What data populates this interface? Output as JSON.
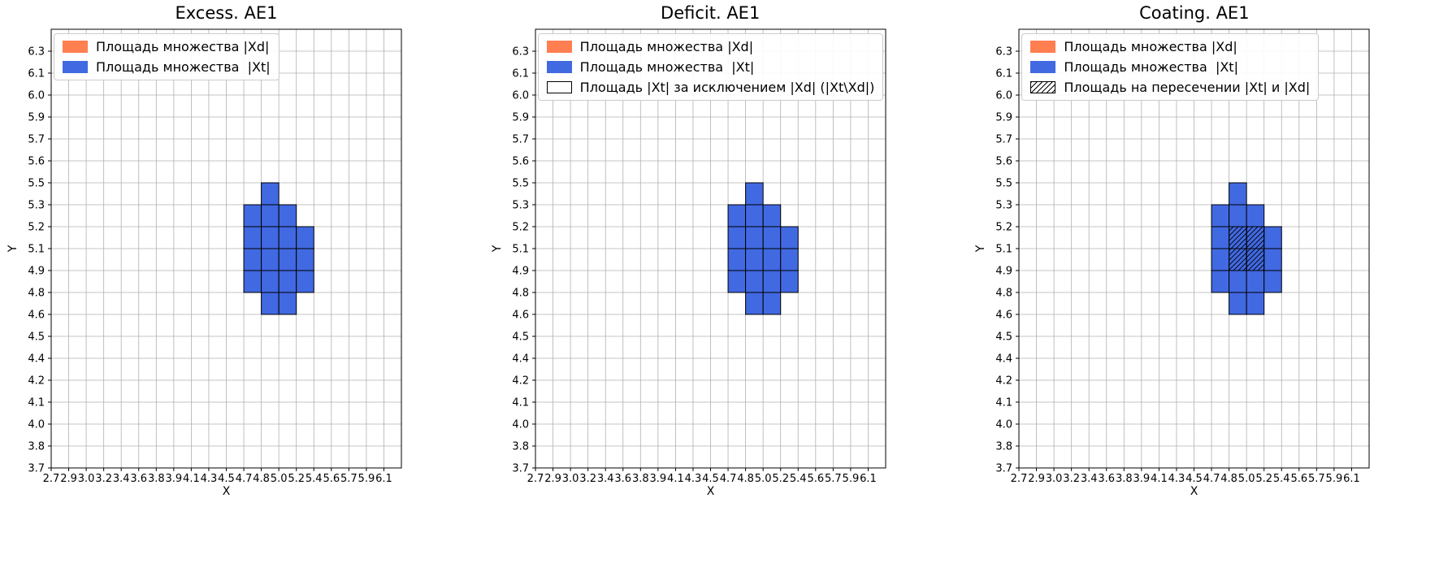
{
  "colors": {
    "xd_fill": "#ff7f50",
    "xt_fill": "#4169e1",
    "cell_edge": "#000000",
    "grid": "#b0b0b0",
    "legend_border": "#cccccc",
    "background": "#ffffff"
  },
  "cells_encoding": "each cell is [x_tick_index, y_tick_index] of its lower-left corner; cell spans one grid square",
  "chart_data": [
    {
      "type": "heatmap",
      "title": "Excess. AE1",
      "xlabel": "X",
      "ylabel": "Y",
      "grid": true,
      "legend_position": "upper left",
      "x_ticks": [
        "2.7",
        "2.9",
        "3.0",
        "3.2",
        "3.4",
        "3.6",
        "3.8",
        "3.9",
        "4.1",
        "4.3",
        "4.5",
        "4.7",
        "4.8",
        "5.0",
        "5.2",
        "5.4",
        "5.6",
        "5.7",
        "5.9",
        "6.1"
      ],
      "y_ticks": [
        "3.7",
        "3.8",
        "4.0",
        "4.1",
        "4.2",
        "4.4",
        "4.5",
        "4.6",
        "4.8",
        "4.9",
        "5.1",
        "5.2",
        "5.3",
        "5.5",
        "5.6",
        "5.7",
        "5.9",
        "6.0",
        "6.1",
        "6.3"
      ],
      "legend": [
        {
          "label": "Площадь множества |Xd|",
          "fill": "#ff7f50",
          "edge": "none",
          "hatch": false
        },
        {
          "label": "Площадь множества  |Xt|",
          "fill": "#4169e1",
          "edge": "none",
          "hatch": false
        }
      ],
      "xt_cells": [
        [
          12,
          12
        ],
        [
          11,
          11
        ],
        [
          12,
          11
        ],
        [
          13,
          11
        ],
        [
          11,
          10
        ],
        [
          12,
          10
        ],
        [
          13,
          10
        ],
        [
          14,
          10
        ],
        [
          11,
          9
        ],
        [
          12,
          9
        ],
        [
          13,
          9
        ],
        [
          14,
          9
        ],
        [
          11,
          8
        ],
        [
          12,
          8
        ],
        [
          13,
          8
        ],
        [
          14,
          8
        ],
        [
          12,
          7
        ],
        [
          13,
          7
        ]
      ],
      "intersection_cells": []
    },
    {
      "type": "heatmap",
      "title": "Deficit. AE1",
      "xlabel": "X",
      "ylabel": "Y",
      "grid": true,
      "legend_position": "upper left",
      "x_ticks": [
        "2.7",
        "2.9",
        "3.0",
        "3.2",
        "3.4",
        "3.6",
        "3.8",
        "3.9",
        "4.1",
        "4.3",
        "4.5",
        "4.7",
        "4.8",
        "5.0",
        "5.2",
        "5.4",
        "5.6",
        "5.7",
        "5.9",
        "6.1"
      ],
      "y_ticks": [
        "3.7",
        "3.8",
        "4.0",
        "4.1",
        "4.2",
        "4.4",
        "4.5",
        "4.6",
        "4.8",
        "4.9",
        "5.1",
        "5.2",
        "5.3",
        "5.5",
        "5.6",
        "5.7",
        "5.9",
        "6.0",
        "6.1",
        "6.3"
      ],
      "legend": [
        {
          "label": "Площадь множества |Xd|",
          "fill": "#ff7f50",
          "edge": "none",
          "hatch": false
        },
        {
          "label": "Площадь множества  |Xt|",
          "fill": "#4169e1",
          "edge": "none",
          "hatch": false
        },
        {
          "label": "Площадь |Xt| за исключением |Xd| (|Xt\\Xd|)",
          "fill": "#ffffff",
          "edge": "#000000",
          "hatch": false
        }
      ],
      "xt_cells": [
        [
          12,
          12
        ],
        [
          11,
          11
        ],
        [
          12,
          11
        ],
        [
          13,
          11
        ],
        [
          11,
          10
        ],
        [
          12,
          10
        ],
        [
          13,
          10
        ],
        [
          14,
          10
        ],
        [
          11,
          9
        ],
        [
          12,
          9
        ],
        [
          13,
          9
        ],
        [
          14,
          9
        ],
        [
          11,
          8
        ],
        [
          12,
          8
        ],
        [
          13,
          8
        ],
        [
          14,
          8
        ],
        [
          12,
          7
        ],
        [
          13,
          7
        ]
      ],
      "intersection_cells": []
    },
    {
      "type": "heatmap",
      "title": "Coating. AE1",
      "xlabel": "X",
      "ylabel": "Y",
      "grid": true,
      "legend_position": "upper left",
      "x_ticks": [
        "2.7",
        "2.9",
        "3.0",
        "3.2",
        "3.4",
        "3.6",
        "3.8",
        "3.9",
        "4.1",
        "4.3",
        "4.5",
        "4.7",
        "4.8",
        "5.0",
        "5.2",
        "5.4",
        "5.6",
        "5.7",
        "5.9",
        "6.1"
      ],
      "y_ticks": [
        "3.7",
        "3.8",
        "4.0",
        "4.1",
        "4.2",
        "4.4",
        "4.5",
        "4.6",
        "4.8",
        "4.9",
        "5.1",
        "5.2",
        "5.3",
        "5.5",
        "5.6",
        "5.7",
        "5.9",
        "6.0",
        "6.1",
        "6.3"
      ],
      "legend": [
        {
          "label": "Площадь множества |Xd|",
          "fill": "#ff7f50",
          "edge": "none",
          "hatch": false
        },
        {
          "label": "Площадь множества  |Xt|",
          "fill": "#4169e1",
          "edge": "none",
          "hatch": false
        },
        {
          "label": "Площадь на пересечении |Xt| и |Xd|",
          "fill": "#ffffff",
          "edge": "#000000",
          "hatch": true
        }
      ],
      "xt_cells": [
        [
          12,
          12
        ],
        [
          11,
          11
        ],
        [
          12,
          11
        ],
        [
          13,
          11
        ],
        [
          11,
          10
        ],
        [
          12,
          10
        ],
        [
          13,
          10
        ],
        [
          14,
          10
        ],
        [
          11,
          9
        ],
        [
          12,
          9
        ],
        [
          13,
          9
        ],
        [
          14,
          9
        ],
        [
          11,
          8
        ],
        [
          12,
          8
        ],
        [
          13,
          8
        ],
        [
          14,
          8
        ],
        [
          12,
          7
        ],
        [
          13,
          7
        ]
      ],
      "intersection_cells": [
        [
          12,
          10
        ],
        [
          13,
          10
        ],
        [
          12,
          9
        ],
        [
          13,
          9
        ]
      ]
    }
  ]
}
